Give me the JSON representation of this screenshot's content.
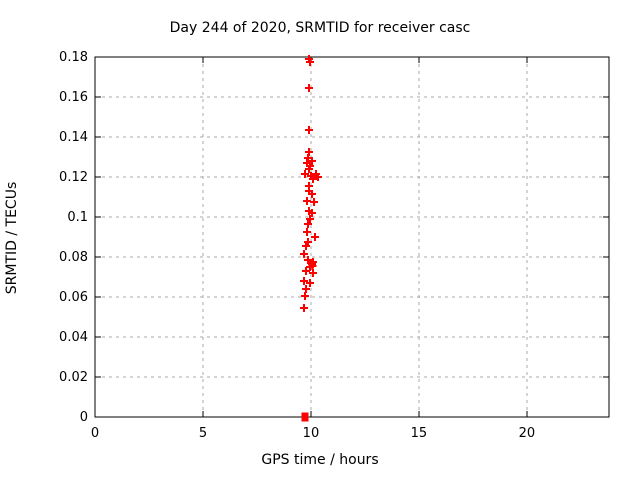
{
  "colors": {
    "background": "#ffffff",
    "text": "#000000",
    "border": "#000000",
    "grid": "#a8a8a8",
    "marker": "#ff0000"
  },
  "chart_data": {
    "type": "scatter",
    "title": "Day 244 of 2020, SRMTID for receiver casc",
    "xlabel": "GPS time / hours",
    "ylabel": "SRMTID / TECUs",
    "xlim": [
      0,
      23.8
    ],
    "ylim": [
      0,
      0.18
    ],
    "xticks": [
      0,
      5,
      10,
      15,
      20
    ],
    "xtick_labels": [
      "0",
      "5",
      "10",
      "15",
      "20"
    ],
    "yticks": [
      0,
      0.02,
      0.04,
      0.06,
      0.08,
      0.1,
      0.12,
      0.14,
      0.16,
      0.18
    ],
    "ytick_labels": [
      "0",
      "0.02",
      "0.04",
      "0.06",
      "0.08",
      "0.1",
      "0.12",
      "0.14",
      "0.16",
      "0.18"
    ],
    "grid": true,
    "legend_position": "none",
    "series": [
      {
        "name": "srmtid",
        "marker": "plus",
        "color": "#ff0000",
        "points": [
          [
            9.91,
            0.179
          ],
          [
            9.95,
            0.1775
          ],
          [
            9.91,
            0.1645
          ],
          [
            9.91,
            0.1435
          ],
          [
            9.91,
            0.1325
          ],
          [
            9.86,
            0.1295
          ],
          [
            10.05,
            0.128
          ],
          [
            9.81,
            0.127
          ],
          [
            9.95,
            0.1255
          ],
          [
            9.91,
            0.124
          ],
          [
            9.72,
            0.1215
          ],
          [
            10.23,
            0.1215
          ],
          [
            10.0,
            0.1205
          ],
          [
            10.32,
            0.12
          ],
          [
            10.09,
            0.119
          ],
          [
            9.91,
            0.1155
          ],
          [
            9.91,
            0.113
          ],
          [
            10.05,
            0.1115
          ],
          [
            9.81,
            0.108
          ],
          [
            10.14,
            0.1075
          ],
          [
            9.91,
            0.103
          ],
          [
            10.05,
            0.102
          ],
          [
            9.95,
            0.099
          ],
          [
            9.86,
            0.0965
          ],
          [
            9.81,
            0.0925
          ],
          [
            10.19,
            0.09
          ],
          [
            9.86,
            0.0875
          ],
          [
            9.77,
            0.0855
          ],
          [
            9.68,
            0.0815
          ],
          [
            9.86,
            0.0785
          ],
          [
            10.09,
            0.0775
          ],
          [
            10.05,
            0.0765
          ],
          [
            10.07,
            0.0755
          ],
          [
            9.95,
            0.075
          ],
          [
            9.77,
            0.073
          ],
          [
            10.09,
            0.072
          ],
          [
            9.68,
            0.068
          ],
          [
            9.95,
            0.067
          ],
          [
            9.77,
            0.064
          ],
          [
            9.72,
            0.0605
          ],
          [
            9.68,
            0.0545
          ]
        ]
      },
      {
        "name": "srmtid-zero",
        "marker": "filled-square",
        "color": "#ff0000",
        "points": [
          [
            9.72,
            0.0
          ]
        ]
      }
    ]
  }
}
